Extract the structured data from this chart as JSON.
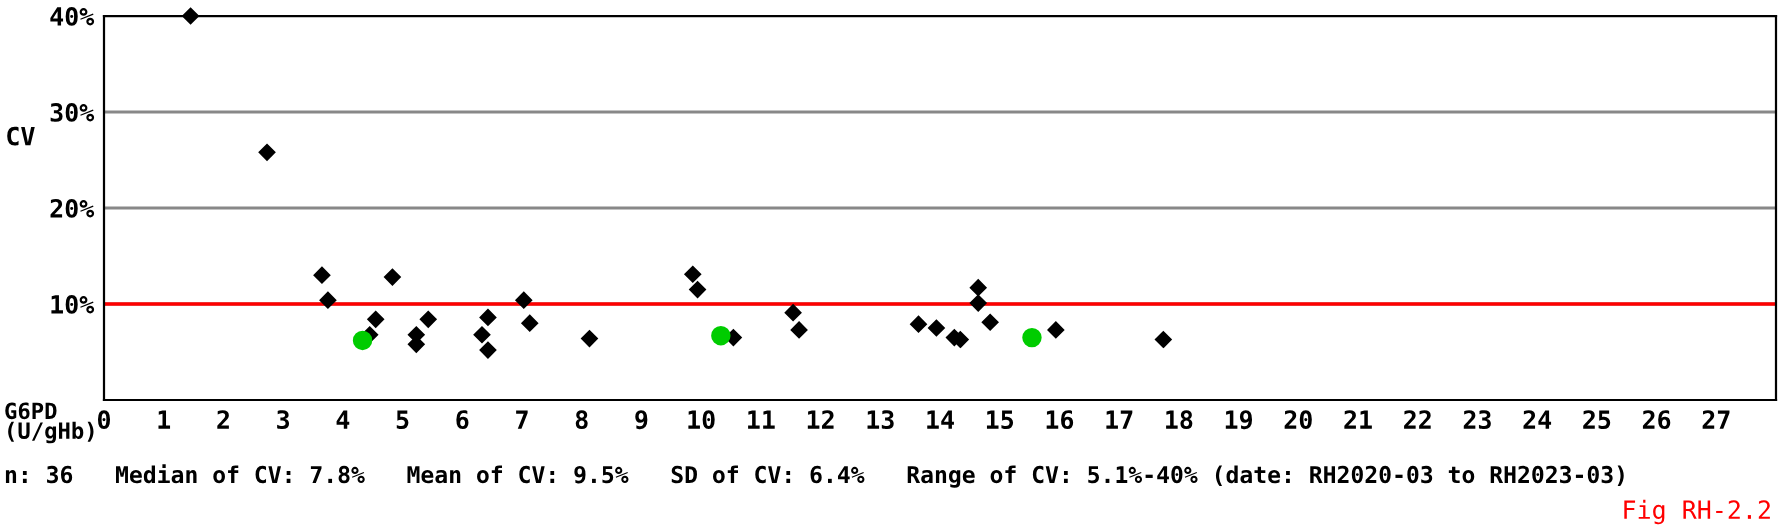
{
  "chart_data": {
    "type": "scatter",
    "ylabel": "CV",
    "xlabel": "G6PD\n(U/gHb)",
    "xlim": [
      0,
      28
    ],
    "xticks": [
      0,
      1,
      2,
      3,
      4,
      5,
      6,
      7,
      8,
      9,
      10,
      11,
      12,
      13,
      14,
      15,
      16,
      17,
      18,
      19,
      20,
      21,
      22,
      23,
      24,
      25,
      26,
      27
    ],
    "ylim": [
      0,
      40
    ],
    "yticks": [
      {
        "value": 10,
        "label": "10%"
      },
      {
        "value": 20,
        "label": "20%"
      },
      {
        "value": 30,
        "label": "30%"
      },
      {
        "value": 40,
        "label": "40%"
      }
    ],
    "grid": "y",
    "ref_lines": [
      {
        "axis": "y",
        "value": 10,
        "color": "#ff0000"
      }
    ],
    "series": [
      {
        "color": "#000000",
        "marker": "diamond",
        "x": [
          1.45,
          2.73,
          3.65,
          3.75,
          4.45,
          4.55,
          4.83,
          5.23,
          5.23,
          5.43,
          6.33,
          6.43,
          6.43,
          7.03,
          7.13,
          8.13,
          9.86,
          9.94,
          10.54,
          11.54,
          11.64,
          13.64,
          13.94,
          14.24,
          14.34,
          14.64,
          14.64,
          14.84,
          15.94,
          17.74
        ],
        "values": [
          40,
          25.8,
          13.0,
          10.4,
          6.8,
          8.4,
          12.8,
          6.8,
          5.8,
          8.4,
          6.8,
          8.6,
          5.2,
          10.4,
          8.0,
          6.4,
          13.1,
          11.5,
          6.5,
          9.1,
          7.3,
          7.9,
          7.5,
          6.5,
          6.3,
          11.7,
          10.1,
          8.1,
          7.3,
          6.3
        ]
      },
      {
        "color": "#00cc00",
        "marker": "circle",
        "x": [
          4.33,
          10.33,
          15.54
        ],
        "values": [
          6.2,
          6.7,
          6.5
        ]
      }
    ],
    "annotations": [
      "n: 36   Median of CV: 7.8%   Mean of CV: 9.5%   SD of CV: 6.4%   Range of CV: 5.1%-40% (date: RH2020-03 to RH2023-03)",
      "Fig RH-2.2"
    ]
  }
}
